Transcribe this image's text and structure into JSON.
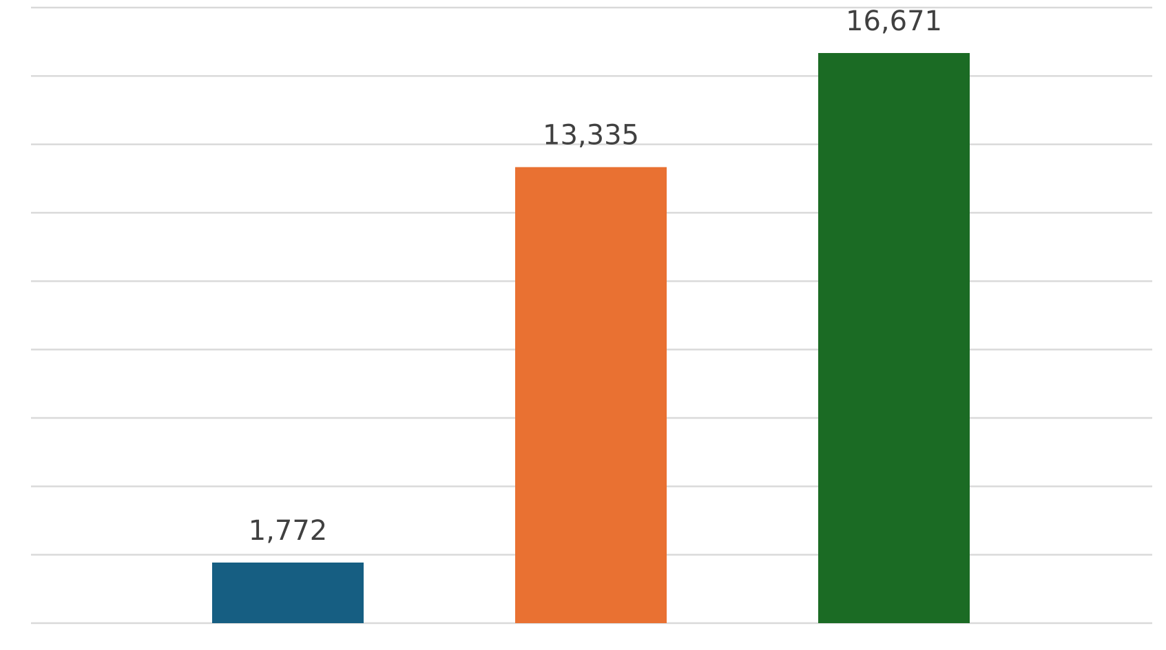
{
  "chart_data": {
    "type": "bar",
    "categories": [
      "",
      "",
      ""
    ],
    "values": [
      1772,
      13335,
      16671
    ],
    "data_labels": [
      "1,772",
      "13,335",
      "16,671"
    ],
    "colors": [
      "#165e82",
      "#e97132",
      "#1b6b24"
    ],
    "ylim": [
      0,
      18000
    ],
    "grid": true,
    "grid_color": "#d9d9d9",
    "label_color": "#404040",
    "title": "",
    "xlabel": "",
    "ylabel": ""
  }
}
